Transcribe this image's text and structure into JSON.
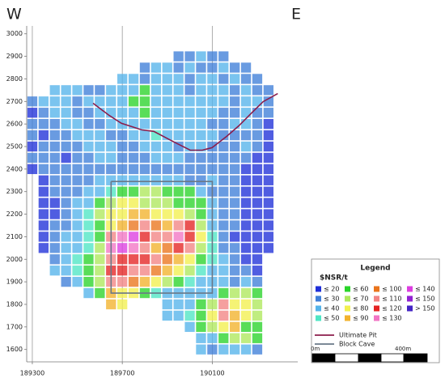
{
  "chart_data": {
    "type": "heatmap",
    "side_labels": [
      "W",
      "E"
    ],
    "xlim": [
      189275,
      190480
    ],
    "ylim": [
      1545,
      3035
    ],
    "xticks": [
      189300,
      189700,
      190100
    ],
    "yticks": [
      1600,
      1700,
      1800,
      1900,
      2000,
      2100,
      2200,
      2300,
      2400,
      2500,
      2600,
      2700,
      2800,
      2900,
      3000
    ],
    "grid": "x",
    "x": [
      189300,
      189350,
      189400,
      189450,
      189500,
      189550,
      189600,
      189650,
      189700,
      189750,
      189800,
      189850,
      189900,
      189950,
      190000,
      190050,
      190100,
      190150,
      190200,
      190250,
      190300,
      190350
    ],
    "y": [
      2900,
      2850,
      2800,
      2750,
      2700,
      2650,
      2600,
      2550,
      2500,
      2450,
      2400,
      2350,
      2300,
      2250,
      2200,
      2150,
      2100,
      2050,
      2000,
      1950,
      1900,
      1850,
      1800,
      1750,
      1700,
      1650,
      1600
    ],
    "values": [
      [
        null,
        null,
        null,
        null,
        null,
        null,
        null,
        null,
        null,
        null,
        null,
        null,
        null,
        30,
        30,
        40,
        30,
        30,
        null,
        null,
        null,
        null
      ],
      [
        null,
        null,
        null,
        null,
        null,
        null,
        null,
        null,
        null,
        null,
        30,
        40,
        40,
        30,
        40,
        30,
        30,
        40,
        30,
        30,
        null,
        null
      ],
      [
        null,
        null,
        null,
        null,
        null,
        null,
        null,
        null,
        40,
        40,
        30,
        40,
        40,
        40,
        30,
        40,
        40,
        30,
        40,
        30,
        30,
        null
      ],
      [
        null,
        null,
        40,
        40,
        40,
        30,
        30,
        40,
        40,
        40,
        60,
        40,
        40,
        40,
        30,
        40,
        40,
        40,
        30,
        40,
        30,
        30
      ],
      [
        30,
        40,
        40,
        40,
        30,
        40,
        40,
        40,
        40,
        60,
        60,
        40,
        40,
        40,
        40,
        40,
        40,
        40,
        30,
        40,
        40,
        30
      ],
      [
        20,
        30,
        40,
        40,
        30,
        30,
        40,
        40,
        40,
        40,
        60,
        40,
        40,
        40,
        40,
        40,
        40,
        30,
        30,
        40,
        30,
        30
      ],
      [
        30,
        30,
        30,
        40,
        40,
        30,
        30,
        40,
        40,
        40,
        40,
        40,
        40,
        40,
        40,
        40,
        30,
        30,
        40,
        40,
        30,
        20
      ],
      [
        30,
        20,
        30,
        30,
        40,
        40,
        40,
        30,
        30,
        40,
        40,
        50,
        40,
        40,
        40,
        40,
        40,
        30,
        30,
        30,
        30,
        20
      ],
      [
        20,
        30,
        30,
        30,
        30,
        40,
        40,
        40,
        30,
        30,
        40,
        40,
        40,
        30,
        40,
        40,
        30,
        30,
        30,
        40,
        30,
        20
      ],
      [
        30,
        30,
        30,
        20,
        30,
        30,
        40,
        40,
        30,
        30,
        30,
        40,
        40,
        40,
        30,
        30,
        30,
        30,
        30,
        30,
        20,
        20
      ],
      [
        20,
        30,
        30,
        30,
        30,
        30,
        30,
        30,
        30,
        30,
        30,
        30,
        30,
        30,
        30,
        30,
        30,
        30,
        30,
        20,
        20,
        20
      ],
      [
        null,
        20,
        30,
        30,
        30,
        30,
        40,
        40,
        40,
        40,
        40,
        40,
        40,
        40,
        30,
        30,
        40,
        30,
        30,
        20,
        20,
        20
      ],
      [
        null,
        20,
        30,
        30,
        30,
        40,
        40,
        50,
        60,
        60,
        70,
        70,
        60,
        60,
        60,
        40,
        30,
        30,
        30,
        20,
        20,
        20
      ],
      [
        null,
        20,
        20,
        30,
        40,
        40,
        60,
        70,
        80,
        80,
        70,
        70,
        70,
        60,
        60,
        60,
        40,
        30,
        30,
        20,
        20,
        20
      ],
      [
        null,
        20,
        20,
        30,
        40,
        50,
        70,
        80,
        80,
        90,
        90,
        80,
        80,
        80,
        70,
        60,
        40,
        30,
        30,
        20,
        20,
        20
      ],
      [
        null,
        20,
        30,
        30,
        40,
        50,
        60,
        80,
        90,
        100,
        110,
        100,
        90,
        110,
        120,
        70,
        40,
        30,
        30,
        20,
        20,
        20
      ],
      [
        null,
        20,
        30,
        40,
        40,
        50,
        60,
        110,
        130,
        140,
        120,
        110,
        110,
        130,
        120,
        80,
        50,
        30,
        20,
        20,
        20,
        20
      ],
      [
        null,
        20,
        30,
        40,
        40,
        50,
        70,
        130,
        140,
        130,
        110,
        90,
        100,
        120,
        110,
        70,
        50,
        30,
        30,
        20,
        20,
        20
      ],
      [
        null,
        null,
        30,
        40,
        50,
        60,
        70,
        110,
        120,
        120,
        120,
        110,
        100,
        90,
        80,
        60,
        50,
        40,
        30,
        20,
        20,
        null
      ],
      [
        null,
        null,
        40,
        40,
        50,
        60,
        70,
        120,
        120,
        110,
        110,
        100,
        90,
        80,
        70,
        50,
        40,
        40,
        30,
        30,
        20,
        null
      ],
      [
        null,
        null,
        null,
        30,
        40,
        60,
        70,
        110,
        110,
        100,
        90,
        80,
        70,
        60,
        50,
        40,
        40,
        40,
        30,
        40,
        30,
        null
      ],
      [
        null,
        null,
        null,
        null,
        null,
        40,
        60,
        90,
        80,
        80,
        60,
        50,
        40,
        40,
        40,
        40,
        40,
        60,
        70,
        70,
        60,
        null
      ],
      [
        null,
        null,
        null,
        null,
        null,
        null,
        null,
        90,
        80,
        null,
        null,
        null,
        40,
        40,
        40,
        60,
        70,
        110,
        80,
        80,
        70,
        null
      ],
      [
        null,
        null,
        null,
        null,
        null,
        null,
        null,
        null,
        null,
        null,
        null,
        null,
        40,
        40,
        50,
        60,
        80,
        110,
        90,
        80,
        70,
        null
      ],
      [
        null,
        null,
        null,
        null,
        null,
        null,
        null,
        null,
        null,
        null,
        null,
        null,
        null,
        null,
        40,
        60,
        70,
        80,
        90,
        60,
        60,
        null
      ],
      [
        null,
        null,
        null,
        null,
        null,
        null,
        null,
        null,
        null,
        null,
        null,
        null,
        null,
        null,
        null,
        40,
        40,
        60,
        70,
        70,
        60,
        null
      ],
      [
        null,
        null,
        null,
        null,
        null,
        null,
        null,
        null,
        null,
        null,
        null,
        null,
        null,
        null,
        null,
        40,
        30,
        40,
        40,
        40,
        30,
        null
      ]
    ],
    "legend_title": "Legend",
    "legend_subtitle": "$NSR/t",
    "classes": [
      {
        "max": 20,
        "label": "≤ 20",
        "color": "#1f2fd8"
      },
      {
        "max": 30,
        "label": "≤ 30",
        "color": "#3f7fd8"
      },
      {
        "max": 40,
        "label": "≤ 40",
        "color": "#55b4ea"
      },
      {
        "max": 50,
        "label": "≤ 50",
        "color": "#4ee6c4"
      },
      {
        "max": 60,
        "label": "≤ 60",
        "color": "#2ad42a"
      },
      {
        "max": 70,
        "label": "≤ 70",
        "color": "#aee85c"
      },
      {
        "max": 80,
        "label": "≤ 80",
        "color": "#f2f04e"
      },
      {
        "max": 90,
        "label": "≤ 90",
        "color": "#f2b22c"
      },
      {
        "max": 100,
        "label": "≤ 100",
        "color": "#ea741c"
      },
      {
        "max": 110,
        "label": "≤ 110",
        "color": "#f28484"
      },
      {
        "max": 120,
        "label": "≤ 120",
        "color": "#e42222"
      },
      {
        "max": 130,
        "label": "≤ 130",
        "color": "#f274c4"
      },
      {
        "max": 140,
        "label": "≤ 140",
        "color": "#dc3ee0"
      },
      {
        "max": 150,
        "label": "≤ 150",
        "color": "#9222d2"
      },
      {
        "min": 150,
        "label": "> 150",
        "color": "#4424c4"
      }
    ],
    "series": [
      {
        "name": "Ultimate Pit",
        "color": "#8b1d4c",
        "x": [
          189570,
          189642,
          189696,
          189786,
          189840,
          189930,
          190002,
          190056,
          190099,
          190164,
          190218,
          190272,
          190326,
          190391
        ],
        "y": [
          2692,
          2638,
          2603,
          2574,
          2567,
          2520,
          2484,
          2484,
          2495,
          2545,
          2592,
          2646,
          2699,
          2735
        ]
      },
      {
        "name": "Block Cave",
        "color": "#6a7888",
        "x": [
          189650,
          190100,
          190100,
          189650,
          189650
        ],
        "y": [
          2345,
          2345,
          1850,
          1850,
          2345
        ]
      }
    ],
    "scale_bar_labels": [
      "0m",
      "400m"
    ]
  }
}
